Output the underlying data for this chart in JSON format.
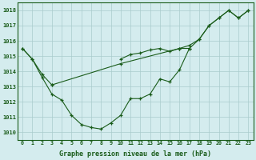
{
  "background_color": "#d4ecee",
  "grid_color": "#aacccc",
  "line_color": "#1a5c1a",
  "xlabel": "Graphe pression niveau de la mer (hPa)",
  "xlim": [
    -0.5,
    23.5
  ],
  "ylim": [
    1009.5,
    1018.5
  ],
  "yticks": [
    1010,
    1011,
    1012,
    1013,
    1014,
    1015,
    1016,
    1017,
    1018
  ],
  "xticks": [
    0,
    1,
    2,
    3,
    4,
    5,
    6,
    7,
    8,
    9,
    10,
    11,
    12,
    13,
    14,
    15,
    16,
    17,
    18,
    19,
    20,
    21,
    22,
    23
  ],
  "line1": {
    "x": [
      0,
      1,
      2,
      3,
      4,
      5,
      6,
      7,
      8,
      9,
      10,
      11,
      12,
      13,
      14,
      15,
      16,
      17
    ],
    "y": [
      1015.5,
      1014.8,
      1013.6,
      1012.5,
      1012.1,
      1011.1,
      1010.5,
      1010.3,
      1010.2,
      1010.6,
      1011.1,
      1012.2,
      1012.2,
      1012.5,
      1013.5,
      1013.3,
      1014.1,
      1015.5
    ]
  },
  "line2": {
    "x": [
      0,
      1,
      2,
      3,
      10,
      11,
      12,
      13,
      14,
      15,
      16,
      17,
      18,
      19,
      20,
      21,
      22,
      23
    ],
    "y": [
      1015.5,
      1014.8,
      1013.8,
      1013.1,
      1014.8,
      1015.1,
      1015.2,
      1015.4,
      1015.5,
      1015.3,
      1015.5,
      1015.5,
      1016.1,
      1017.0,
      1017.5,
      1018.0,
      1017.5,
      1018.0
    ]
  },
  "line3": {
    "x": [
      3,
      10,
      16,
      17,
      18,
      19,
      20,
      21,
      22,
      23
    ],
    "y": [
      1013.1,
      1014.5,
      1015.5,
      1015.7,
      1016.1,
      1017.0,
      1017.5,
      1018.0,
      1017.5,
      1018.0
    ]
  }
}
